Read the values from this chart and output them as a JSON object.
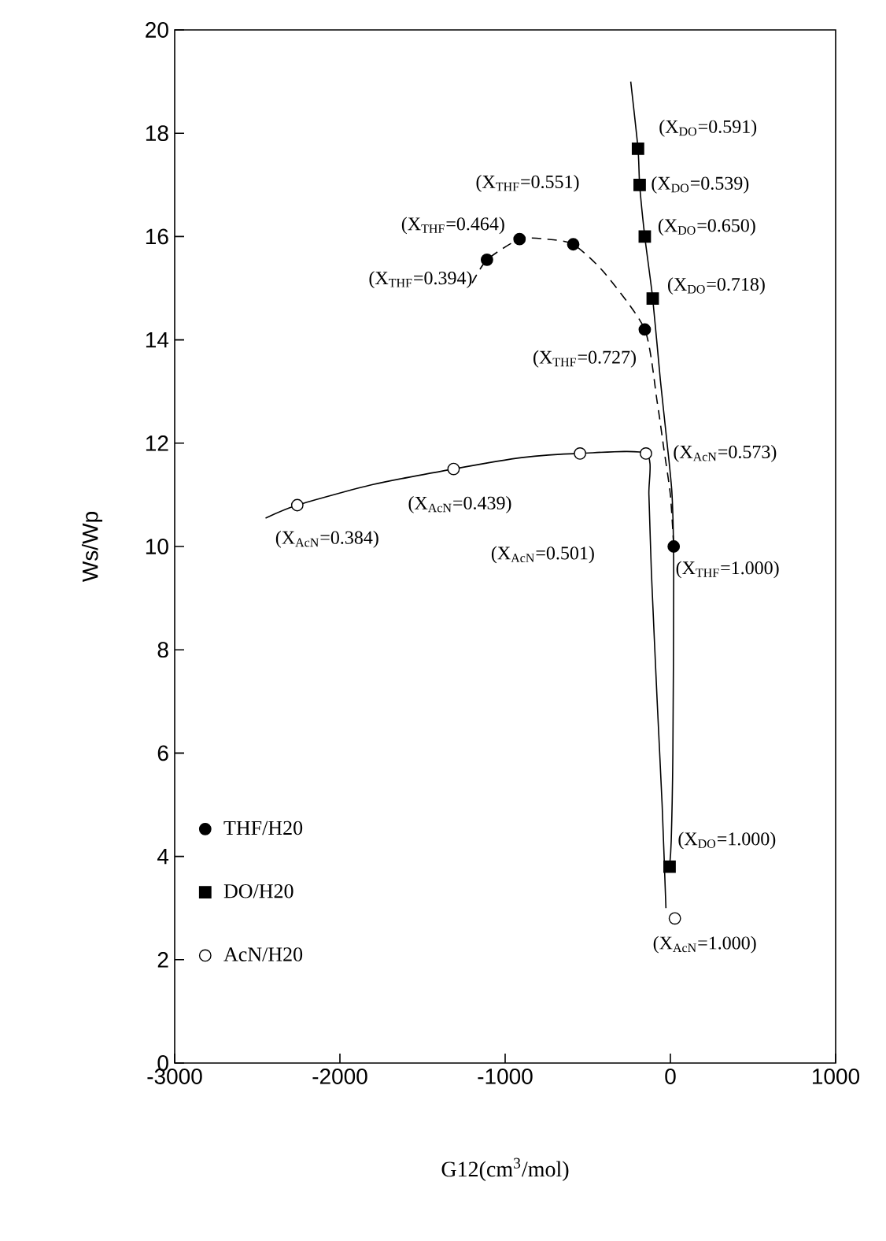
{
  "chart_data": {
    "type": "scatter",
    "xlabel": "G12(cm$^{3}$/mol)",
    "ylabel": "Ws/Wp",
    "xlim": [
      -3000,
      1000
    ],
    "ylim": [
      0,
      20
    ],
    "xticks": [
      -3000,
      -2000,
      -1000,
      0,
      1000
    ],
    "yticks": [
      0,
      2,
      4,
      6,
      8,
      10,
      12,
      14,
      16,
      18,
      20
    ],
    "legend": "bottom left",
    "grid": false,
    "series": [
      {
        "name": "THF/H20",
        "marker": "circle",
        "color": "#000000",
        "x": [
          -1110,
          -913,
          -588,
          -155,
          20
        ],
        "values": [
          15.55,
          15.95,
          15.85,
          14.2,
          10.0
        ]
      },
      {
        "name": "DO/H20",
        "marker": "square",
        "color": "#000000",
        "x": [
          -196,
          -186,
          -155,
          -107,
          -5
        ],
        "values": [
          17.7,
          17.0,
          16.0,
          14.8,
          3.8
        ]
      },
      {
        "name": "AcN/H20",
        "marker": "circle",
        "color": "#ffffff",
        "x": [
          -2258,
          -1312,
          -547,
          -148,
          27
        ],
        "values": [
          10.8,
          11.5,
          11.8,
          11.8,
          2.8
        ]
      },
      {
        "type": "line",
        "line_style": "dashed",
        "color": "#000000",
        "x": [
          -1200,
          -1110,
          -913,
          -750,
          -588,
          -400,
          -155,
          -80,
          -40,
          0,
          20
        ],
        "values": [
          15.1,
          15.55,
          15.95,
          15.95,
          15.85,
          15.3,
          14.2,
          12.8,
          11.9,
          11.0,
          10.0
        ]
      },
      {
        "type": "line",
        "line_style": "solid",
        "color": "#000000",
        "x": [
          -240,
          -196,
          -186,
          -155,
          -107,
          -60,
          -20,
          10,
          20,
          15,
          5,
          -5
        ],
        "values": [
          19.0,
          17.7,
          17.0,
          16.0,
          14.8,
          13.2,
          12.0,
          11.0,
          9.5,
          6.0,
          4.3,
          3.8
        ]
      },
      {
        "type": "line",
        "line_style": "solid",
        "color": "#000000",
        "x": [
          -2450,
          -2258,
          -1800,
          -1312,
          -900,
          -547,
          -148,
          -130,
          -115,
          -80,
          -50,
          -27
        ],
        "values": [
          10.55,
          10.8,
          11.2,
          11.5,
          11.72,
          11.8,
          11.8,
          11.0,
          9.5,
          7.0,
          5.0,
          3.0
        ]
      }
    ],
    "annotations": [
      {
        "text": "(X$_{THF}$=0.394)",
        "x": -1110,
        "y": 15.55
      },
      {
        "text": "(X$_{THF}$=0.464)",
        "x": -913,
        "y": 15.95
      },
      {
        "text": "(X$_{THF}$=0.551)",
        "x": -588,
        "y": 15.85
      },
      {
        "text": "(X$_{THF}$=0.727)",
        "x": -155,
        "y": 14.2
      },
      {
        "text": "(X$_{THF}$=1.000)",
        "x": 20,
        "y": 10.0
      },
      {
        "text": "(X$_{DO}$=0.591)",
        "x": -196,
        "y": 17.7
      },
      {
        "text": "(X$_{DO}$=0.539)",
        "x": -186,
        "y": 17.0
      },
      {
        "text": "(X$_{DO}$=0.650)",
        "x": -155,
        "y": 16.0
      },
      {
        "text": "(X$_{DO}$=0.718)",
        "x": -107,
        "y": 14.8
      },
      {
        "text": "(X$_{DO}$=1.000)",
        "x": -5,
        "y": 3.8
      },
      {
        "text": "(X$_{AcN}$=0.384)",
        "x": -2258,
        "y": 10.8
      },
      {
        "text": "(X$_{AcN}$=0.439)",
        "x": -1312,
        "y": 11.5
      },
      "(X$_{AcN}$=0.501)",
      {
        "text": "(X$_{AcN}$=0.573)",
        "x": -148,
        "y": 11.8
      },
      {
        "text": "(X$_{AcN}$=1.000)",
        "x": 27,
        "y": 2.8
      }
    ]
  }
}
